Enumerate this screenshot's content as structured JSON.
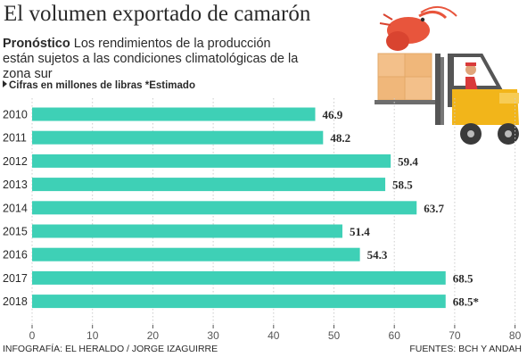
{
  "header": {
    "title": "El volumen exportado de camarón",
    "subtitle_keyword": "Pronóstico",
    "subtitle_text": " Los rendimientos de la producción están sujetos a las condiciones climatológicas de la zona sur",
    "note": "Cifras en millones de libras *Estimado"
  },
  "footer": {
    "credit_left": "INFOGRAFÍA: EL HERALDO / JORGE IZAGUIRRE",
    "credit_right": "FUENTES: BCH Y ANDAH"
  },
  "illustration": {
    "icon_shrimp": "shrimp-icon",
    "icon_forklift": "forklift-icon"
  },
  "colors": {
    "bar": "#3ed0b6",
    "grid": "#cccccc",
    "text": "#2a2a2a",
    "forklift": "#f2b51a",
    "boxes": "#f3c08a"
  },
  "chart_data": {
    "type": "bar",
    "orientation": "horizontal",
    "categories": [
      "2010",
      "2011",
      "2012",
      "2013",
      "2014",
      "2015",
      "2016",
      "2017",
      "2018"
    ],
    "values": [
      46.9,
      48.2,
      59.4,
      58.5,
      63.7,
      51.4,
      54.3,
      68.5,
      68.5
    ],
    "value_labels": [
      "46.9",
      "48.2",
      "59.4",
      "58.5",
      "63.7",
      "51.4",
      "54.3",
      "68.5",
      "68.5*"
    ],
    "xlim": [
      0,
      80
    ],
    "xticks": [
      "0",
      "10",
      "20",
      "30",
      "40",
      "50",
      "60",
      "70",
      "80"
    ],
    "grid": "dotted",
    "xlabel": "",
    "ylabel": ""
  }
}
